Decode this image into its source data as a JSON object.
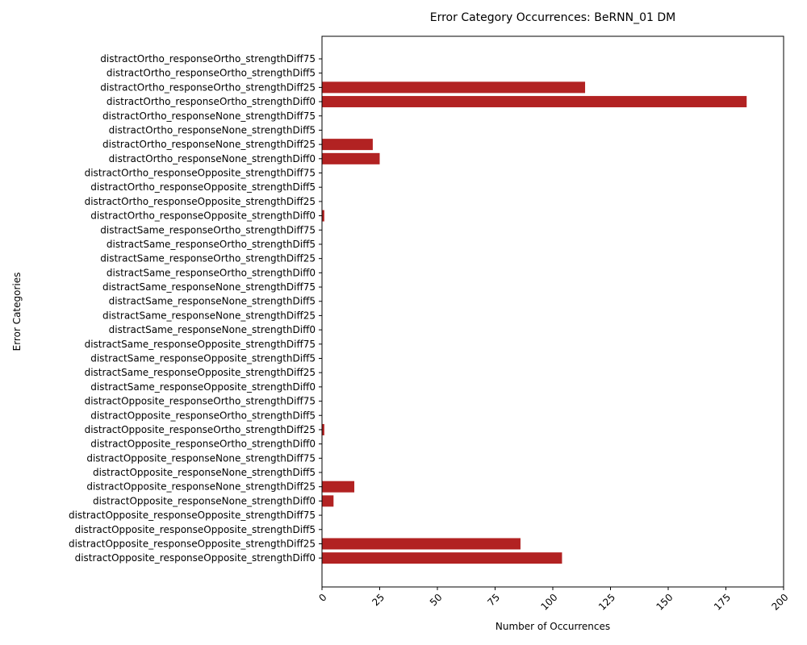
{
  "chart_data": {
    "type": "bar",
    "orientation": "horizontal",
    "title": "Error Category Occurrences: BeRNN_01 DM",
    "xlabel": "Number of Occurrences",
    "ylabel": "Error Categories",
    "xlim": [
      0,
      200
    ],
    "xticks": [
      0,
      25,
      50,
      75,
      100,
      125,
      150,
      175,
      200
    ],
    "bar_color": "#b22222",
    "grid": false,
    "categories": [
      "distractOrtho_responseOrtho_strengthDiff75",
      "distractOrtho_responseOrtho_strengthDiff5",
      "distractOrtho_responseOrtho_strengthDiff25",
      "distractOrtho_responseOrtho_strengthDiff0",
      "distractOrtho_responseNone_strengthDiff75",
      "distractOrtho_responseNone_strengthDiff5",
      "distractOrtho_responseNone_strengthDiff25",
      "distractOrtho_responseNone_strengthDiff0",
      "distractOrtho_responseOpposite_strengthDiff75",
      "distractOrtho_responseOpposite_strengthDiff5",
      "distractOrtho_responseOpposite_strengthDiff25",
      "distractOrtho_responseOpposite_strengthDiff0",
      "distractSame_responseOrtho_strengthDiff75",
      "distractSame_responseOrtho_strengthDiff5",
      "distractSame_responseOrtho_strengthDiff25",
      "distractSame_responseOrtho_strengthDiff0",
      "distractSame_responseNone_strengthDiff75",
      "distractSame_responseNone_strengthDiff5",
      "distractSame_responseNone_strengthDiff25",
      "distractSame_responseNone_strengthDiff0",
      "distractSame_responseOpposite_strengthDiff75",
      "distractSame_responseOpposite_strengthDiff5",
      "distractSame_responseOpposite_strengthDiff25",
      "distractSame_responseOpposite_strengthDiff0",
      "distractOpposite_responseOrtho_strengthDiff75",
      "distractOpposite_responseOrtho_strengthDiff5",
      "distractOpposite_responseOrtho_strengthDiff25",
      "distractOpposite_responseOrtho_strengthDiff0",
      "distractOpposite_responseNone_strengthDiff75",
      "distractOpposite_responseNone_strengthDiff5",
      "distractOpposite_responseNone_strengthDiff25",
      "distractOpposite_responseNone_strengthDiff0",
      "distractOpposite_responseOpposite_strengthDiff75",
      "distractOpposite_responseOpposite_strengthDiff5",
      "distractOpposite_responseOpposite_strengthDiff25",
      "distractOpposite_responseOpposite_strengthDiff0"
    ],
    "values": [
      0,
      0,
      114,
      184,
      0,
      0,
      22,
      25,
      0,
      0,
      0,
      1,
      0,
      0,
      0,
      0,
      0,
      0,
      0,
      0,
      0,
      0,
      0,
      0,
      0,
      0,
      1,
      0,
      0,
      0,
      14,
      5,
      0,
      0,
      86,
      104
    ]
  }
}
